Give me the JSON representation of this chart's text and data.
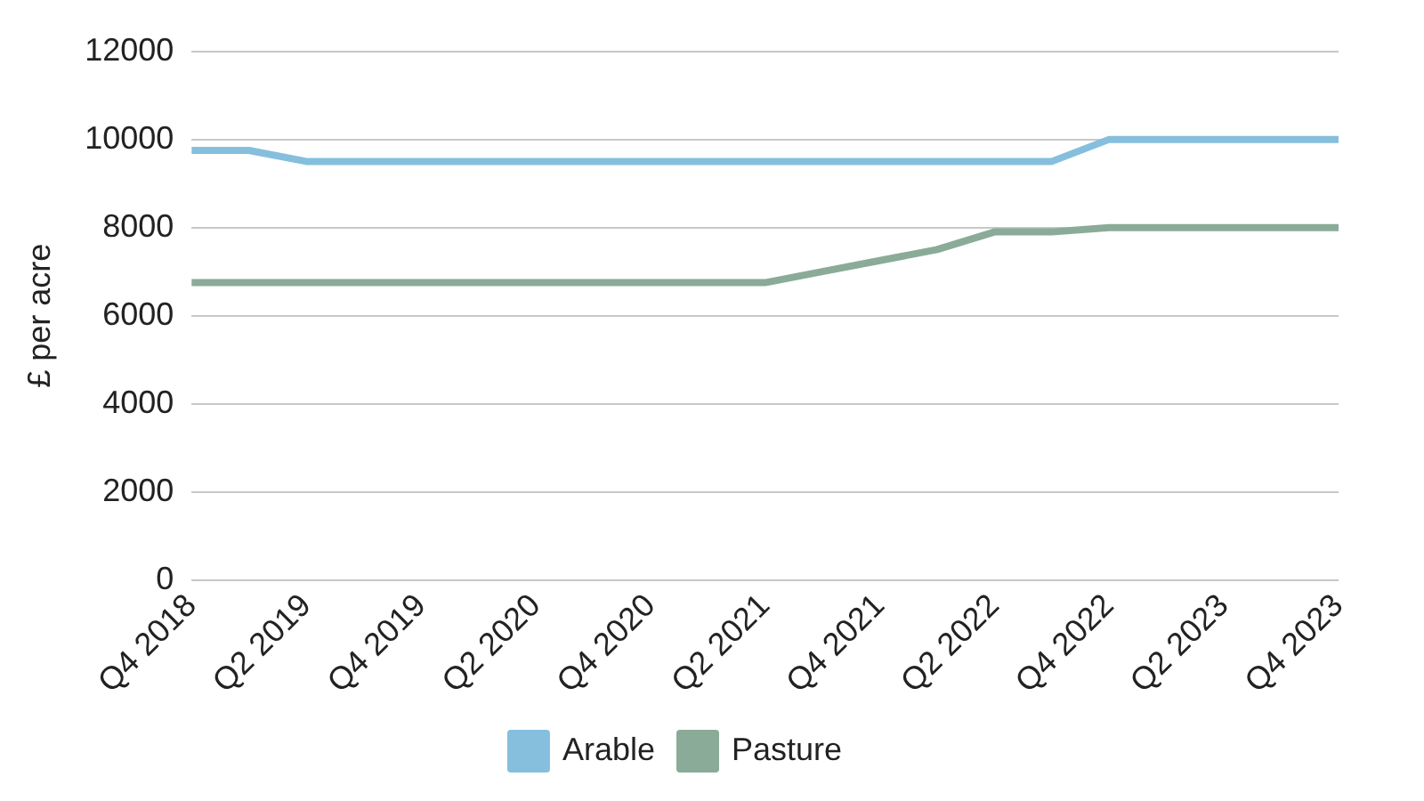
{
  "chart_data": {
    "type": "line",
    "ylabel": "£ per acre",
    "categories": [
      "Q4 2018",
      null,
      "Q2 2019",
      null,
      "Q4 2019",
      null,
      "Q2 2020",
      null,
      "Q4 2020",
      null,
      "Q2 2021",
      null,
      "Q4 2021",
      null,
      "Q2 2022",
      null,
      "Q4 2022",
      null,
      "Q2 2023",
      null,
      "Q4 2023"
    ],
    "series": [
      {
        "name": "Arable",
        "color": "#86bfdd",
        "values": [
          9750,
          9750,
          9500,
          9500,
          9500,
          9500,
          9500,
          9500,
          9500,
          9500,
          9500,
          9500,
          9500,
          9500,
          9500,
          9500,
          10000,
          10000,
          10000,
          10000,
          10000
        ]
      },
      {
        "name": "Pasture",
        "color": "#8aab98",
        "values": [
          6750,
          6750,
          6750,
          6750,
          6750,
          6750,
          6750,
          6750,
          6750,
          6750,
          6750,
          7000,
          7250,
          7500,
          7900,
          7900,
          8000,
          8000,
          8000,
          8000,
          8000
        ]
      }
    ],
    "ylim": [
      0,
      12000
    ],
    "yticks": [
      0,
      2000,
      4000,
      6000,
      8000,
      10000,
      12000
    ],
    "grid": "y",
    "legend": "bottom",
    "marker": "none",
    "line_style": "solid"
  }
}
